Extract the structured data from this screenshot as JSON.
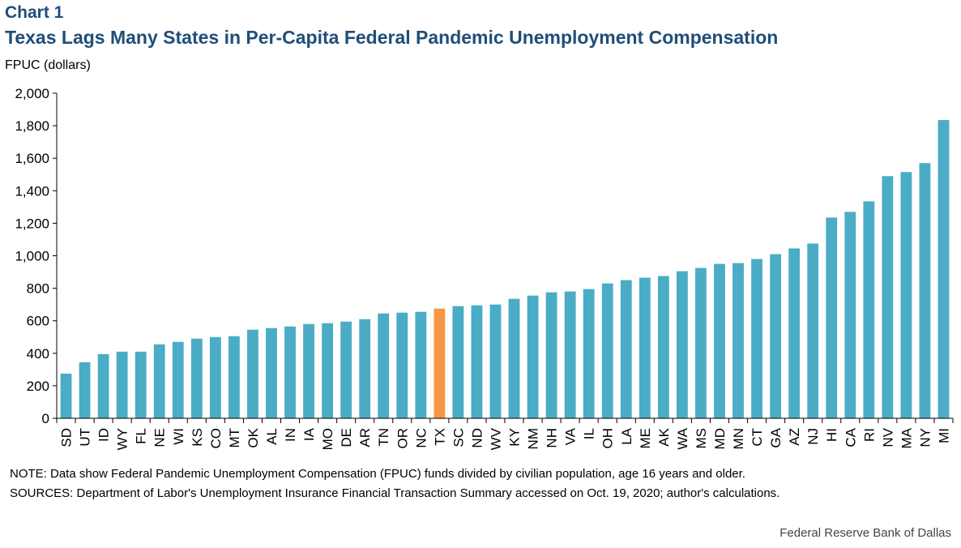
{
  "header": {
    "chart_number": "Chart 1",
    "title": "Texas Lags Many States in Per-Capita Federal Pandemic Unemployment Compensation",
    "y_axis_label": "FPUC  (dollars)"
  },
  "chart_data": {
    "type": "bar",
    "title": "Texas Lags Many States in Per-Capita Federal Pandemic Unemployment Compensation",
    "ylabel": "FPUC (dollars)",
    "xlabel": "",
    "ylim": [
      0,
      2000
    ],
    "yticks": [
      0,
      200,
      400,
      600,
      800,
      1000,
      1200,
      1400,
      1600,
      1800,
      2000
    ],
    "ytick_labels": [
      "0",
      "200",
      "400",
      "600",
      "800",
      "1,000",
      "1,200",
      "1,400",
      "1,600",
      "1,800",
      "2,000"
    ],
    "grid": false,
    "categories": [
      "SD",
      "UT",
      "ID",
      "WY",
      "FL",
      "NE",
      "WI",
      "KS",
      "CO",
      "MT",
      "OK",
      "AL",
      "IN",
      "IA",
      "MO",
      "DE",
      "AR",
      "TN",
      "OR",
      "NC",
      "TX",
      "SC",
      "ND",
      "WV",
      "KY",
      "NM",
      "NH",
      "VA",
      "IL",
      "OH",
      "LA",
      "ME",
      "AK",
      "WA",
      "MS",
      "MD",
      "MN",
      "CT",
      "GA",
      "AZ",
      "NJ",
      "HI",
      "CA",
      "RI",
      "NV",
      "MA",
      "NY",
      "MI"
    ],
    "values": [
      275,
      345,
      395,
      410,
      410,
      455,
      470,
      490,
      500,
      505,
      545,
      555,
      565,
      580,
      585,
      595,
      610,
      645,
      650,
      655,
      675,
      690,
      695,
      700,
      735,
      755,
      775,
      780,
      795,
      830,
      850,
      865,
      875,
      905,
      925,
      950,
      955,
      980,
      1010,
      1045,
      1075,
      1235,
      1270,
      1335,
      1490,
      1515,
      1570,
      1835
    ],
    "highlight_category": "TX",
    "colors": {
      "bar": "#4bacc6",
      "highlight": "#f79646"
    }
  },
  "notes": {
    "note": "NOTE: Data show Federal Pandemic Unemployment Compensation (FPUC) funds divided by civilian population, age 16 years and older.",
    "sources": "SOURCES: Department of Labor's Unemployment Insurance Financial Transaction Summary accessed on Oct. 19, 2020; author's calculations."
  },
  "footer": {
    "credit": "Federal Reserve Bank of Dallas"
  }
}
